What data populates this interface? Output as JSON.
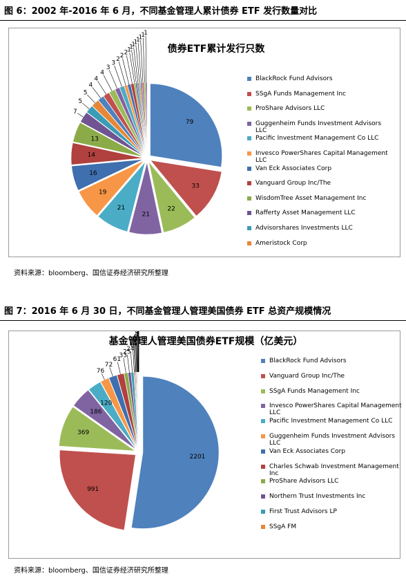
{
  "chart_data": [
    {
      "type": "pie",
      "caption": "图 6：2002 年-2016 年 6 月，不同基金管理人累计债券 ETF 发行数量对比",
      "title": "债券ETF累计发行只数",
      "source": "资料来源：bloomberg、国信证券经济研究所整理",
      "categories": [
        "BlackRock Fund Advisors",
        "SSgA Funds Management Inc",
        "ProShare Advisors LLC",
        "Guggenheim Funds Investment Advisors LLC",
        "Pacific Investment Management Co LLC",
        "Invesco PowerShares Capital Management LLC",
        "Van Eck Associates Corp",
        "Vanguard Group Inc/The",
        "WisdomTree Asset Management Inc",
        "Rafferty Asset Management LLC",
        "Advisorshares Investments LLC",
        "Ameristock Corp",
        null,
        null,
        null,
        null,
        null,
        null,
        null,
        null,
        null,
        null,
        null,
        null,
        null,
        null,
        null,
        null
      ],
      "values": [
        79,
        33,
        22,
        21,
        21,
        19,
        16,
        14,
        13,
        7,
        5,
        5,
        4,
        4,
        4,
        3,
        3,
        2,
        2,
        2,
        1,
        1,
        1,
        1,
        1,
        1,
        1,
        1
      ],
      "colors": [
        "#4f81bd",
        "#c0504d",
        "#9bbb59",
        "#8064a2",
        "#4bacc6",
        "#f79646",
        "#3f6fae",
        "#b0413e",
        "#8bab49",
        "#705492",
        "#3b9cb6",
        "#e78636"
      ]
    },
    {
      "type": "pie",
      "caption": "图 7：2016 年 6 月 30 日，不同基金管理人管理美国债券 ETF 总资产规模情况",
      "title": "基金管理人管理美国债券ETF规模（亿美元）",
      "source": "资料来源：bloomberg、国信证券经济研究所整理",
      "categories": [
        "BlackRock Fund Advisors",
        "Vanguard Group Inc/The",
        "SSgA Funds Management Inc",
        "Invesco PowerShares Capital Management LLC",
        "Pacific Investment Management Co LLC",
        "Guggenheim Funds Investment Advisors LLC",
        "Van Eck Associates Corp",
        "Charles Schwab Investment Management Inc",
        "ProShare Advisors LLC",
        "Northern Trust Investments Inc",
        "First Trust Advisors LP",
        "SSgA FM",
        null,
        null,
        null,
        null,
        null,
        null,
        null,
        null,
        null,
        null
      ],
      "values": [
        2201,
        991,
        369,
        186,
        120,
        76,
        72,
        61,
        33,
        25,
        24,
        8,
        7,
        6,
        5,
        4,
        4,
        3,
        2,
        2,
        1,
        0
      ],
      "colors": [
        "#4f81bd",
        "#c0504d",
        "#9bbb59",
        "#8064a2",
        "#4bacc6",
        "#f79646",
        "#3f6fae",
        "#b0413e",
        "#8bab49",
        "#705492",
        "#3b9cb6",
        "#e78636"
      ]
    }
  ]
}
